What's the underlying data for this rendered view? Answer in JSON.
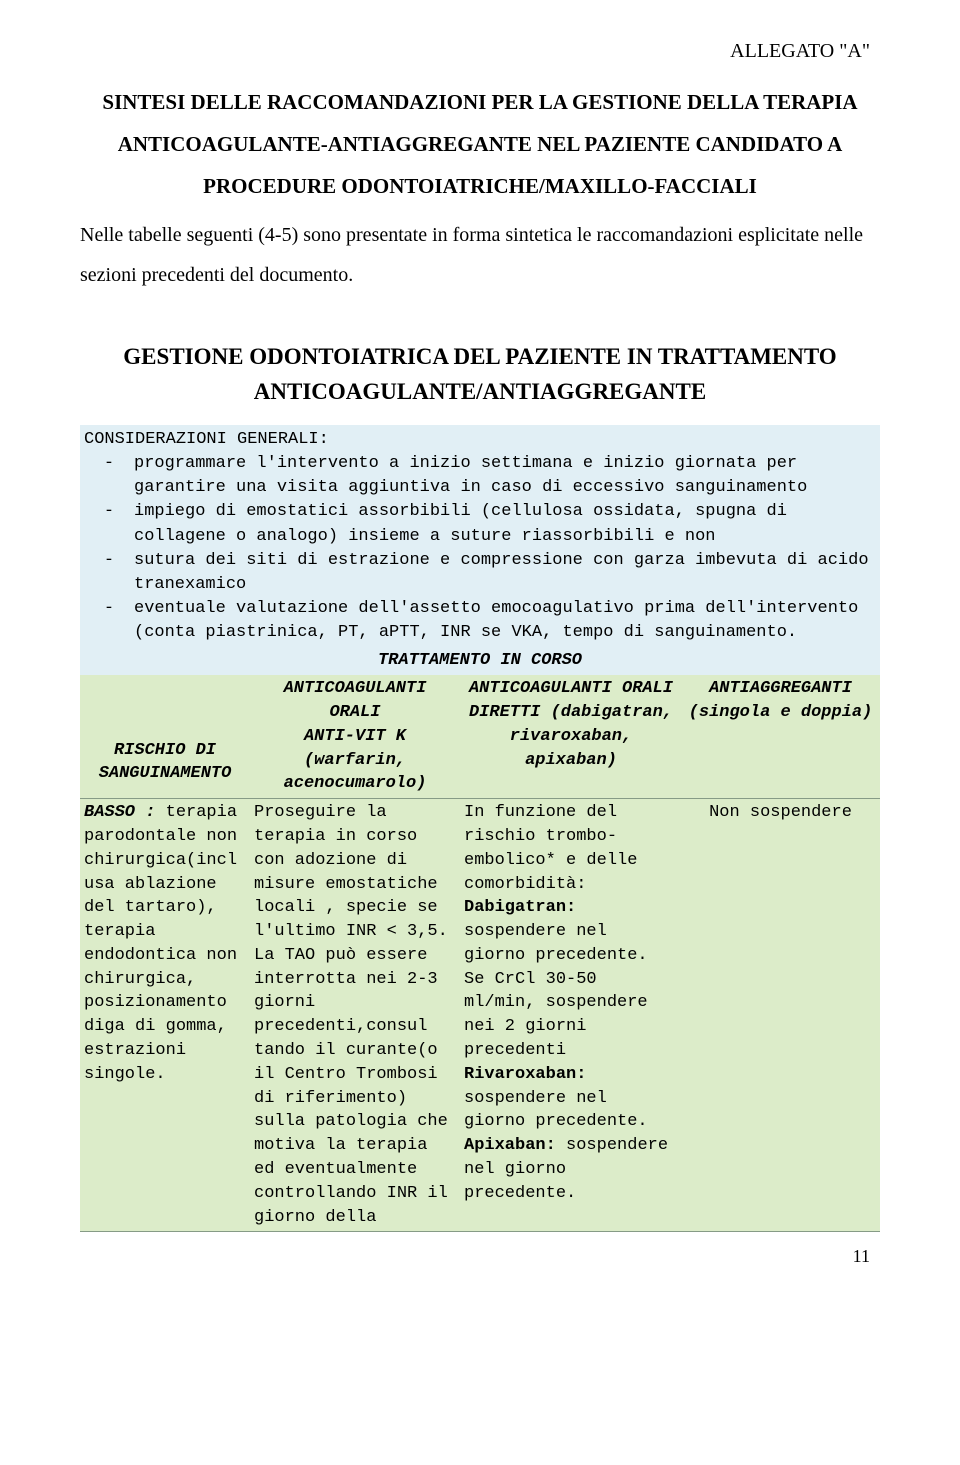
{
  "header": {
    "allegato": "ALLEGATO \"A\""
  },
  "title": {
    "l1": "SINTESI DELLE RACCOMANDAZIONI PER LA GESTIONE DELLA TERAPIA",
    "l2": "ANTICOAGULANTE-ANTIAGGREGANTE NEL PAZIENTE CANDIDATO A",
    "l3": "PROCEDURE ODONTOIATRICHE/MAXILLO-FACCIALI"
  },
  "intro": "Nelle tabelle seguenti (4-5) sono presentate in  forma sintetica  le raccomandazioni esplicitate nelle sezioni precedenti del documento.",
  "box_title": {
    "l1": "GESTIONE ODONTOIATRICA DEL PAZIENTE IN TRATTAMENTO",
    "l2": "ANTICOAGULANTE/ANTIAGGREGANTE"
  },
  "considerazioni": {
    "heading": "CONSIDERAZIONI GENERALI:",
    "items": [
      "programmare l'intervento a inizio settimana e inizio giornata per garantire una visita aggiuntiva in caso di eccessivo sanguinamento",
      "impiego di emostatici assorbibili (cellulosa ossidata, spugna di collagene o analogo) insieme a suture riassorbibili e non",
      "sutura dei siti di estrazione e compressione con garza imbevuta di acido tranexamico",
      "eventuale valutazione dell'assetto emocoagulativo prima dell'intervento (conta piastrinica, PT, aPTT, INR se VKA, tempo di sanguinamento."
    ]
  },
  "trattamento_header": "TRATTAMENTO IN CORSO",
  "table": {
    "head": {
      "c1": "RISCHIO DI SANGUINAMENTO",
      "c2": "ANTICOAGULANTI ORALI\nANTI-VIT K (warfarin, acenocumarolo)",
      "c3": "ANTICOAGULANTI ORALI DIRETTI (dabigatran, rivaroxaban, apixaban)",
      "c4": "ANTIAGGREGANTI (singola e doppia)"
    },
    "row1": {
      "c1_html": "<span style=\"font-style:italic;font-weight:bold;\">BASSO :</span> terapia parodontale non chirurgica(incl usa ablazione del tartaro), terapia endodontica non chirurgica, posizionamento diga di gomma, estrazioni singole.",
      "c2_html": "Proseguire la terapia in corso con adozione di misure emostatiche locali , specie se l'ultimo INR &lt; 3,5.<br>La TAO può essere interrotta nei 2-3 giorni precedenti,consul tando il curante(o il Centro Trombosi di riferimento) sulla patologia che motiva la terapia ed eventualmente controllando  INR il giorno della",
      "c3_html": "In funzione del rischio trombo-embolico* e delle comorbidità:<br><b>Dabigatran:</b> sospendere nel giorno precedente.<br>Se CrCl 30-50 ml/min, sospendere nei 2 giorni precedenti<br><b>Rivaroxaban:</b> sospendere nel giorno precedente.<br><b>Apixaban:</b> sospendere nel giorno precedente.",
      "c4_html": "Non sospendere"
    }
  },
  "colors": {
    "cons_bg": "#e1eff5",
    "table_bg": "#dcecc9",
    "row_border": "#869b86"
  },
  "page_number": "11"
}
